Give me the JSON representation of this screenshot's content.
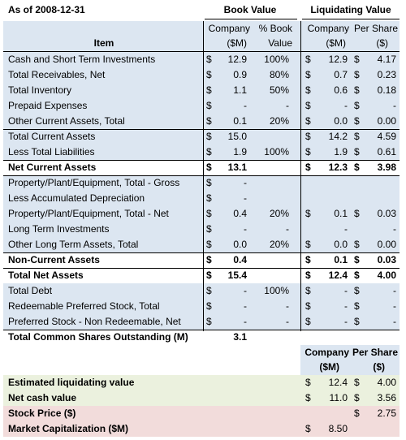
{
  "header": {
    "as_of": "As of 2008-12-31",
    "book_value": "Book Value",
    "liquidating_value": "Liquidating Value",
    "item": "Item",
    "company_line1": "Company",
    "company_line2": "($M)",
    "pct_book_line1": "% Book",
    "pct_book_line2": "Value",
    "liq_company_line1": "Company",
    "liq_company_line2": "($M)",
    "per_share_line1": "Per Share",
    "per_share_line2": "($)"
  },
  "rows": [
    {
      "label": "Cash and Short Term Investments",
      "bv_cur": "$",
      "bv": "12.9",
      "pct": "100%",
      "lv_cur": "$",
      "lv": "12.9",
      "ps_cur": "$",
      "ps": "4.17"
    },
    {
      "label": "Total Receivables, Net",
      "bv_cur": "$",
      "bv": "0.9",
      "pct": "80%",
      "lv_cur": "$",
      "lv": "0.7",
      "ps_cur": "$",
      "ps": "0.23"
    },
    {
      "label": "Total Inventory",
      "bv_cur": "$",
      "bv": "1.1",
      "pct": "50%",
      "lv_cur": "$",
      "lv": "0.6",
      "ps_cur": "$",
      "ps": "0.18"
    },
    {
      "label": "Prepaid Expenses",
      "bv_cur": "$",
      "bv": "-",
      "pct": "-",
      "lv_cur": "$",
      "lv": "-",
      "ps_cur": "$",
      "ps": "-"
    },
    {
      "label": "Other Current Assets, Total",
      "bv_cur": "$",
      "bv": "0.1",
      "pct": "20%",
      "lv_cur": "$",
      "lv": "0.0",
      "ps_cur": "$",
      "ps": "0.00"
    },
    {
      "label": "Total Current Assets",
      "bv_cur": "$",
      "bv": "15.0",
      "pct": "",
      "lv_cur": "$",
      "lv": "14.2",
      "ps_cur": "$",
      "ps": "4.59"
    },
    {
      "label": "Less Total Liabilities",
      "bv_cur": "$",
      "bv": "1.9",
      "pct": "100%",
      "lv_cur": "$",
      "lv": "1.9",
      "ps_cur": "$",
      "ps": "0.61"
    },
    {
      "label": "Net Current Assets",
      "bv_cur": "$",
      "bv": "13.1",
      "pct": "",
      "lv_cur": "$",
      "lv": "12.3",
      "ps_cur": "$",
      "ps": "3.98"
    },
    {
      "label": "Property/Plant/Equipment, Total - Gross",
      "bv_cur": "$",
      "bv": "-",
      "pct": "",
      "lv_cur": "",
      "lv": "",
      "ps_cur": "",
      "ps": ""
    },
    {
      "label": "Less Accumulated Depreciation",
      "bv_cur": "$",
      "bv": "-",
      "pct": "",
      "lv_cur": "",
      "lv": "",
      "ps_cur": "",
      "ps": ""
    },
    {
      "label": "Property/Plant/Equipment, Total - Net",
      "bv_cur": "$",
      "bv": "0.4",
      "pct": "20%",
      "lv_cur": "$",
      "lv": "0.1",
      "ps_cur": "$",
      "ps": "0.03"
    },
    {
      "label": "Long Term Investments",
      "bv_cur": "$",
      "bv": "-",
      "pct": "-",
      "lv_cur": "",
      "lv": "-",
      "ps_cur": "",
      "ps": "-"
    },
    {
      "label": "Other Long Term Assets, Total",
      "bv_cur": "$",
      "bv": "0.0",
      "pct": "20%",
      "lv_cur": "$",
      "lv": "0.0",
      "ps_cur": "$",
      "ps": "0.00"
    },
    {
      "label": "Non-Current Assets",
      "bv_cur": "$",
      "bv": "0.4",
      "pct": "",
      "lv_cur": "$",
      "lv": "0.1",
      "ps_cur": "$",
      "ps": "0.03"
    },
    {
      "label": "Total Net Assets",
      "bv_cur": "$",
      "bv": "15.4",
      "pct": "",
      "lv_cur": "$",
      "lv": "12.4",
      "ps_cur": "$",
      "ps": "4.00"
    },
    {
      "label": "Total Debt",
      "bv_cur": "$",
      "bv": "-",
      "pct": "100%",
      "lv_cur": "$",
      "lv": "-",
      "ps_cur": "$",
      "ps": "-"
    },
    {
      "label": "Redeemable Preferred Stock, Total",
      "bv_cur": "$",
      "bv": "-",
      "pct": "-",
      "lv_cur": "$",
      "lv": "-",
      "ps_cur": "$",
      "ps": "-"
    },
    {
      "label": "Preferred Stock - Non Redeemable, Net",
      "bv_cur": "$",
      "bv": "-",
      "pct": "-",
      "lv_cur": "$",
      "lv": "-",
      "ps_cur": "$",
      "ps": "-"
    },
    {
      "label": "Total Common Shares Outstanding (M)",
      "bv_cur": "",
      "bv": "3.1",
      "pct": "",
      "lv_cur": "",
      "lv": "",
      "ps_cur": "",
      "ps": ""
    }
  ],
  "summary": {
    "company_line1": "Company",
    "company_line2": "($M)",
    "per_share_line1": "Per Share",
    "per_share_line2": "($)",
    "rows": [
      {
        "label": "Estimated liquidating value",
        "c_cur": "$",
        "c": "12.4",
        "p_cur": "$",
        "p": "4.00"
      },
      {
        "label": "Net cash value",
        "c_cur": "$",
        "c": "11.0",
        "p_cur": "$",
        "p": "3.56"
      },
      {
        "label": "Stock Price ($)",
        "c_cur": "",
        "c": "",
        "p_cur": "$",
        "p": "2.75"
      },
      {
        "label": "Market Capitalization ($M)",
        "c_cur": "$",
        "c": "8.50",
        "p_cur": "",
        "p": ""
      }
    ]
  },
  "colors": {
    "blue_fill": "#dce6f1",
    "green_fill": "#ebf1de",
    "pink_fill": "#f2dcdb"
  }
}
